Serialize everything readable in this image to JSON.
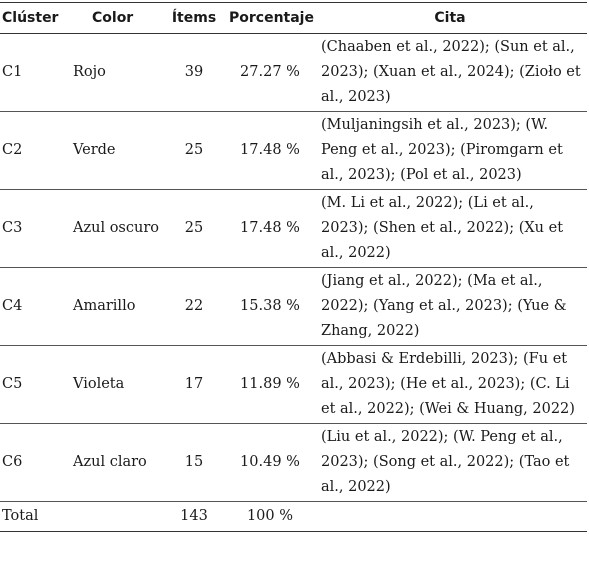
{
  "headers": {
    "cluster": "Clúster",
    "color": "Color",
    "items": "Ítems",
    "percentage": "Porcentaje",
    "citation": "Cita"
  },
  "rows": [
    {
      "cluster": "C1",
      "color": "Rojo",
      "items": "39",
      "percentage": "27.27 %",
      "citation": "(Chaaben et al., 2022); (Sun et al., 2023); (Xuan et al., 2024); (Zioło et al., 2023)"
    },
    {
      "cluster": "C2",
      "color": "Verde",
      "items": "25",
      "percentage": "17.48 %",
      "citation": "(Muljaningsih et al., 2023); (W. Peng et al., 2023); (Piromgarn et al., 2023); (Pol et al., 2023)"
    },
    {
      "cluster": "C3",
      "color": "Azul oscuro",
      "items": "25",
      "percentage": "17.48 %",
      "citation": "(M. Li et al., 2022); (Li et al., 2023); (Shen et al., 2022); (Xu et al., 2022)"
    },
    {
      "cluster": "C4",
      "color": "Amarillo",
      "items": "22",
      "percentage": "15.38 %",
      "citation": "(Jiang et al., 2022); (Ma et al., 2022); (Yang et al., 2023); (Yue & Zhang, 2022)"
    },
    {
      "cluster": "C5",
      "color": "Violeta",
      "items": "17",
      "percentage": "11.89 %",
      "citation": "(Abbasi & Erdebilli, 2023); (Fu et al., 2023); (He et al., 2023); (C. Li et al., 2022); (Wei & Huang, 2022)"
    },
    {
      "cluster": "C6",
      "color": "Azul claro",
      "items": "15",
      "percentage": "10.49 %",
      "citation": "(Liu et al., 2022); (W. Peng et al., 2023); (Song et al., 2022); (Tao et al., 2022)"
    }
  ],
  "total": {
    "label": "Total",
    "items": "143",
    "percentage": "100 %"
  }
}
